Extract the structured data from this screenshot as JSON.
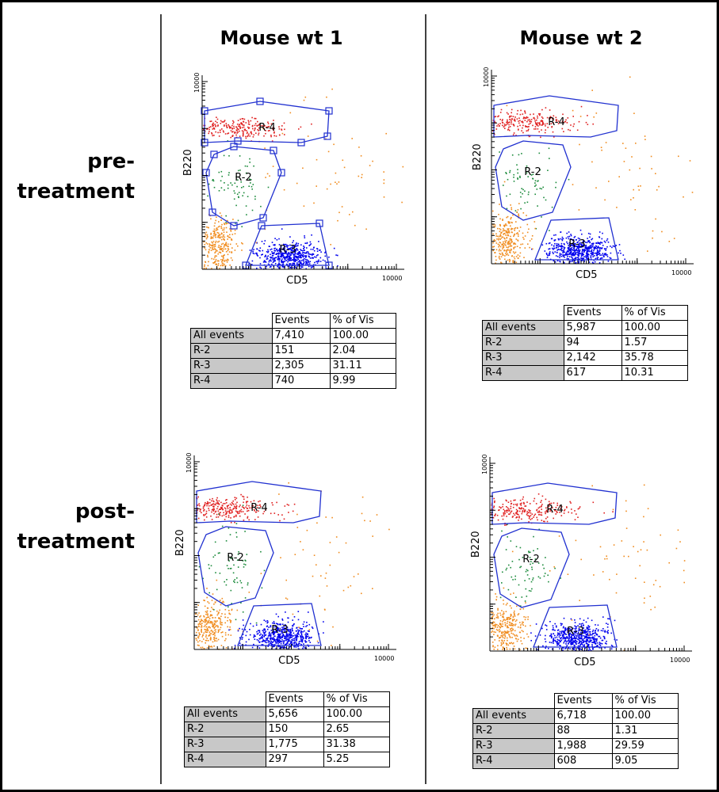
{
  "columns": [
    "Mouse wt 1",
    "Mouse wt 2"
  ],
  "rows": [
    [
      "pre-",
      "treatment"
    ],
    [
      "post-",
      "treatment"
    ]
  ],
  "panels": [
    {
      "x_label": "CD5",
      "y_label": "B220",
      "x_max_label": "10000",
      "y_max_label": "10000",
      "gates": [
        "R-4",
        "R-2",
        "R-3"
      ],
      "table": {
        "header": [
          "Events",
          "% of Vis"
        ],
        "rows": [
          [
            "All events",
            "7,410",
            "100.00"
          ],
          [
            "R-2",
            "151",
            "2.04"
          ],
          [
            "R-3",
            "2,305",
            "31.11"
          ],
          [
            "R-4",
            "740",
            "9.99"
          ]
        ]
      }
    },
    {
      "x_label": "CD5",
      "y_label": "B220",
      "x_max_label": "10000",
      "y_max_label": "10000",
      "gates": [
        "R-4",
        "R-2",
        "R-3"
      ],
      "table": {
        "header": [
          "Events",
          "% of Vis"
        ],
        "rows": [
          [
            "All events",
            "5,987",
            "100.00"
          ],
          [
            "R-2",
            "94",
            "1.57"
          ],
          [
            "R-3",
            "2,142",
            "35.78"
          ],
          [
            "R-4",
            "617",
            "10.31"
          ]
        ]
      }
    },
    {
      "x_label": "CD5",
      "y_label": "B220",
      "x_max_label": "10000",
      "y_max_label": "10000",
      "gates": [
        "R-4",
        "R-2",
        "R-3"
      ],
      "table": {
        "header": [
          "Events",
          "% of Vis"
        ],
        "rows": [
          [
            "All events",
            "5,656",
            "100.00"
          ],
          [
            "R-2",
            "150",
            "2.65"
          ],
          [
            "R-3",
            "1,775",
            "31.38"
          ],
          [
            "R-4",
            "297",
            "5.25"
          ]
        ]
      }
    },
    {
      "x_label": "CD5",
      "y_label": "B220",
      "x_max_label": "10000",
      "y_max_label": "10000",
      "gates": [
        "R-4",
        "R-2",
        "R-3"
      ],
      "table": {
        "header": [
          "Events",
          "% of Vis"
        ],
        "rows": [
          [
            "All events",
            "6,718",
            "100.00"
          ],
          [
            "R-2",
            "88",
            "1.31"
          ],
          [
            "R-3",
            "1,988",
            "29.59"
          ],
          [
            "R-4",
            "608",
            "9.05"
          ]
        ]
      }
    }
  ]
}
